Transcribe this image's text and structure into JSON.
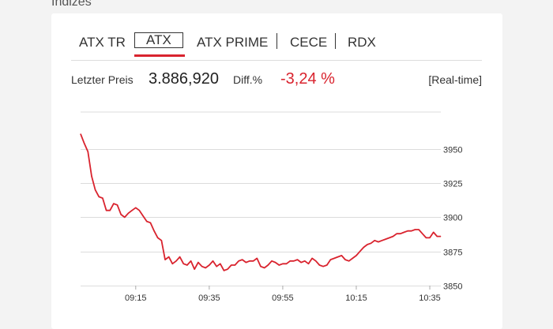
{
  "section_title": "Indizes",
  "tabs": [
    {
      "label": "ATX TR"
    },
    {
      "label": "ATX"
    },
    {
      "label": "ATX PRIME"
    },
    {
      "label": "CECE"
    },
    {
      "label": "RDX"
    }
  ],
  "quote": {
    "last_price_label": "Letzter Preis",
    "last_price_value": "3.886,920",
    "diff_label": "Diff.%",
    "diff_value": "-3,24 %",
    "realtime_label": "[Real-time]"
  },
  "colors": {
    "accent": "#d9232e",
    "line": "#d9232e",
    "grid": "#dcdcdc"
  },
  "chart_data": {
    "type": "line",
    "title": "",
    "xlabel": "",
    "ylabel": "",
    "ylim": [
      3850,
      3977
    ],
    "yticks": [
      3850,
      3875,
      3900,
      3925,
      3950
    ],
    "xlim": [
      "09:00",
      "10:38"
    ],
    "xticks": [
      "09:15",
      "09:35",
      "09:55",
      "10:15",
      "10:35"
    ],
    "grid": true,
    "series": [
      {
        "name": "",
        "x": [
          "09:00",
          "09:01",
          "09:02",
          "09:03",
          "09:04",
          "09:05",
          "09:06",
          "09:07",
          "09:08",
          "09:09",
          "09:10",
          "09:11",
          "09:12",
          "09:13",
          "09:14",
          "09:15",
          "09:16",
          "09:17",
          "09:18",
          "09:19",
          "09:20",
          "09:21",
          "09:22",
          "09:23",
          "09:24",
          "09:25",
          "09:26",
          "09:27",
          "09:28",
          "09:29",
          "09:30",
          "09:31",
          "09:32",
          "09:33",
          "09:34",
          "09:35",
          "09:36",
          "09:37",
          "09:38",
          "09:39",
          "09:40",
          "09:41",
          "09:42",
          "09:43",
          "09:44",
          "09:45",
          "09:46",
          "09:47",
          "09:48",
          "09:49",
          "09:50",
          "09:51",
          "09:52",
          "09:53",
          "09:54",
          "09:55",
          "09:56",
          "09:57",
          "09:58",
          "09:59",
          "10:00",
          "10:01",
          "10:02",
          "10:03",
          "10:04",
          "10:05",
          "10:06",
          "10:07",
          "10:08",
          "10:09",
          "10:10",
          "10:11",
          "10:12",
          "10:13",
          "10:14",
          "10:15",
          "10:16",
          "10:17",
          "10:18",
          "10:19",
          "10:20",
          "10:21",
          "10:22",
          "10:23",
          "10:24",
          "10:25",
          "10:26",
          "10:27",
          "10:28",
          "10:29",
          "10:30",
          "10:31",
          "10:32",
          "10:33",
          "10:34",
          "10:35",
          "10:36",
          "10:37",
          "10:38"
        ],
        "values": [
          3961,
          3954,
          3948,
          3930,
          3920,
          3915,
          3914,
          3905,
          3905,
          3910,
          3909,
          3902,
          3900,
          3903,
          3905,
          3907,
          3905,
          3901,
          3897,
          3896,
          3890,
          3885,
          3883,
          3869,
          3871,
          3866,
          3868,
          3871,
          3866,
          3865,
          3868,
          3862,
          3867,
          3864,
          3863,
          3865,
          3868,
          3864,
          3866,
          3861,
          3862,
          3865,
          3865,
          3868,
          3869,
          3867,
          3868,
          3868,
          3870,
          3864,
          3863,
          3865,
          3868,
          3867,
          3865,
          3866,
          3866,
          3868,
          3868,
          3869,
          3867,
          3868,
          3866,
          3870,
          3868,
          3865,
          3864,
          3865,
          3869,
          3870,
          3871,
          3872,
          3869,
          3868,
          3870,
          3872,
          3875,
          3878,
          3880,
          3881,
          3883,
          3882,
          3883,
          3884,
          3885,
          3886,
          3888,
          3888,
          3889,
          3890,
          3890,
          3891,
          3891,
          3888,
          3885,
          3885,
          3889,
          3886,
          3886
        ]
      }
    ]
  }
}
